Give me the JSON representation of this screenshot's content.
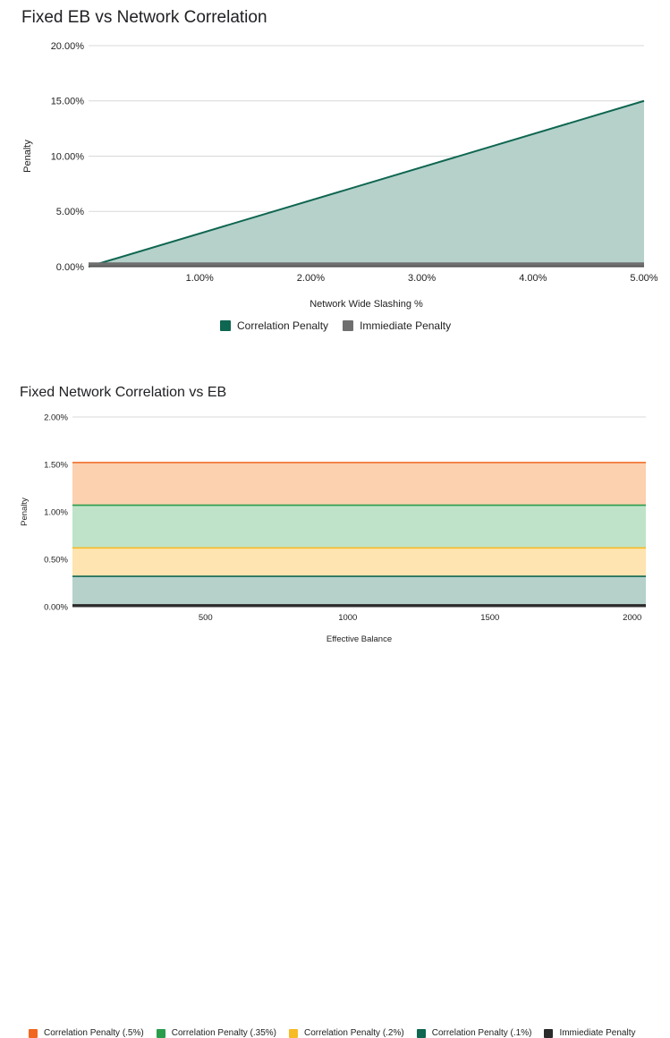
{
  "charts": [
    {
      "title": "Fixed EB vs Network Correlation",
      "chart_data": {
        "type": "area",
        "title": "Fixed EB vs Network Correlation",
        "xlabel": "Network Wide Slashing %",
        "ylabel": "Penalty",
        "x": [
          0.0,
          5.0
        ],
        "xlim": [
          0.0,
          5.0
        ],
        "ylim": [
          0,
          20
        ],
        "x_ticks": [
          "1.00%",
          "2.00%",
          "3.00%",
          "4.00%",
          "5.00%"
        ],
        "y_ticks": [
          "0.00%",
          "5.00%",
          "10.00%",
          "15.00%",
          "20.00%"
        ],
        "grid": true,
        "legend_position": "bottom",
        "series": [
          {
            "name": "Correlation Penalty",
            "values": [
              0.0,
              15.0
            ],
            "color": "#0f6651",
            "fill": "#b5d1ca"
          },
          {
            "name": "Immiediate Penalty",
            "values": [
              0.3,
              0.3
            ],
            "color": "#6f6f6f",
            "fill": "#6f6f6f"
          }
        ]
      }
    },
    {
      "title": "Fixed Network Correlation vs EB",
      "chart_data": {
        "type": "area",
        "title": "Fixed Network Correlation vs EB",
        "xlabel": "Effective Balance",
        "ylabel": "Penalty",
        "x": [
          32,
          2048
        ],
        "xlim": [
          32,
          2048
        ],
        "ylim": [
          0,
          2
        ],
        "x_ticks": [
          "500",
          "1000",
          "1500",
          "2000"
        ],
        "y_ticks": [
          "0.00%",
          "0.50%",
          "1.00%",
          "1.50%",
          "2.00%"
        ],
        "grid": true,
        "legend_position": "bottom",
        "series": [
          {
            "name": "Correlation Penalty (.5%)",
            "values": [
              1.52,
              1.52
            ],
            "color": "#f1671f",
            "fill": "#fbd1b0"
          },
          {
            "name": "Correlation Penalty (.35%)",
            "values": [
              1.07,
              1.07
            ],
            "color": "#2a9d4d",
            "fill": "#bfe3c8"
          },
          {
            "name": "Correlation Penalty (.2%)",
            "values": [
              0.62,
              0.62
            ],
            "color": "#f7bb26",
            "fill": "#fde4b0"
          },
          {
            "name": "Correlation Penalty (.1%)",
            "values": [
              0.32,
              0.32
            ],
            "color": "#0f6651",
            "fill": "#b5d1ca"
          },
          {
            "name": "Immiediate Penalty",
            "values": [
              0.02,
              0.02
            ],
            "color": "#2b2b2b",
            "fill": "#2b2b2b"
          }
        ]
      }
    }
  ]
}
